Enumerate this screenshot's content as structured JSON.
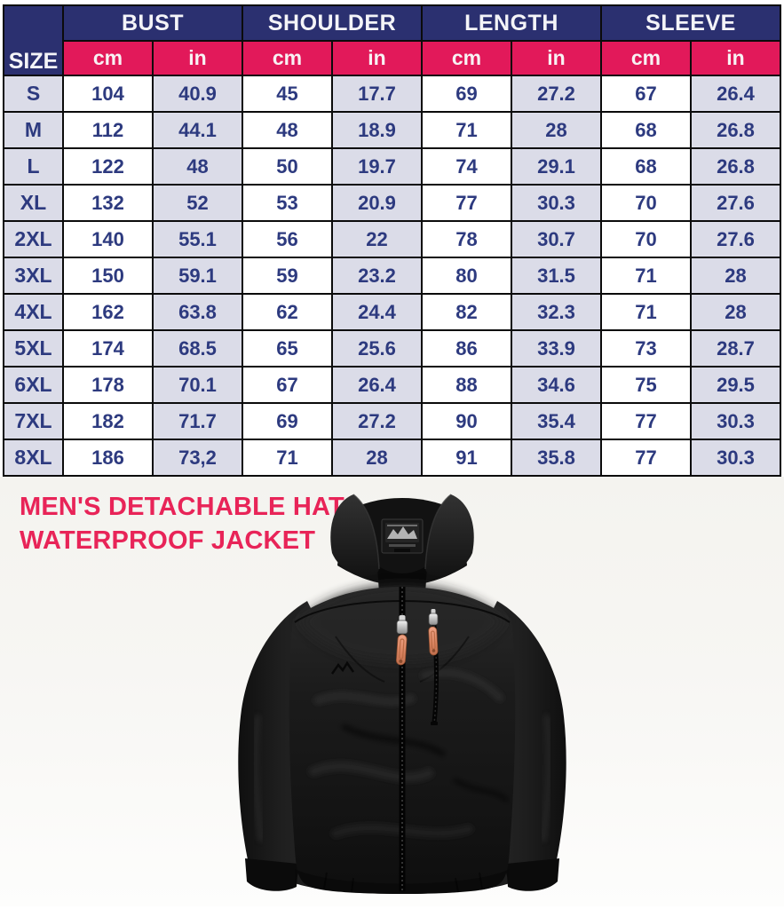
{
  "size_chart": {
    "corner_label": "SIZE",
    "measure_groups": [
      {
        "label": "BUST"
      },
      {
        "label": "SHOULDER"
      },
      {
        "label": "LENGTH"
      },
      {
        "label": "SLEEVE"
      }
    ],
    "units": [
      "cm",
      "in",
      "cm",
      "in",
      "cm",
      "in",
      "cm",
      "in"
    ],
    "rows": [
      {
        "size": "S",
        "values": [
          "104",
          "40.9",
          "45",
          "17.7",
          "69",
          "27.2",
          "67",
          "26.4"
        ]
      },
      {
        "size": "M",
        "values": [
          "112",
          "44.1",
          "48",
          "18.9",
          "71",
          "28",
          "68",
          "26.8"
        ]
      },
      {
        "size": "L",
        "values": [
          "122",
          "48",
          "50",
          "19.7",
          "74",
          "29.1",
          "68",
          "26.8"
        ]
      },
      {
        "size": "XL",
        "values": [
          "132",
          "52",
          "53",
          "20.9",
          "77",
          "30.3",
          "70",
          "27.6"
        ]
      },
      {
        "size": "2XL",
        "values": [
          "140",
          "55.1",
          "56",
          "22",
          "78",
          "30.7",
          "70",
          "27.6"
        ]
      },
      {
        "size": "3XL",
        "values": [
          "150",
          "59.1",
          "59",
          "23.2",
          "80",
          "31.5",
          "71",
          "28"
        ]
      },
      {
        "size": "4XL",
        "values": [
          "162",
          "63.8",
          "62",
          "24.4",
          "82",
          "32.3",
          "71",
          "28"
        ]
      },
      {
        "size": "5XL",
        "values": [
          "174",
          "68.5",
          "65",
          "25.6",
          "86",
          "33.9",
          "73",
          "28.7"
        ]
      },
      {
        "size": "6XL",
        "values": [
          "178",
          "70.1",
          "67",
          "26.4",
          "88",
          "34.6",
          "75",
          "29.5"
        ]
      },
      {
        "size": "7XL",
        "values": [
          "182",
          "71.7",
          "69",
          "27.2",
          "90",
          "35.4",
          "77",
          "30.3"
        ]
      },
      {
        "size": "8XL",
        "values": [
          "186",
          "73,2",
          "71",
          "28",
          "91",
          "35.8",
          "77",
          "30.3"
        ]
      }
    ],
    "colors": {
      "header_navy": "#2b3070",
      "header_pink": "#e2195a",
      "cell_white": "#ffffff",
      "cell_lavender": "#dbdce8",
      "value_text": "#2d3a7f",
      "border": "#0b0b0b"
    }
  },
  "product": {
    "title_line1": "MEN'S DETACHABLE HAT",
    "title_line2": "WATERPROOF JACKET",
    "title_color": "#e82458",
    "image": {
      "name": "black-jacket-photo",
      "jacket_color": "#1a1a1a",
      "zipper_pull_color": "#d8825f"
    }
  }
}
